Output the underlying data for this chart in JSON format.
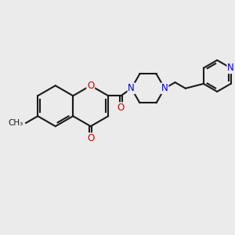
{
  "bg": "#ebebeb",
  "bond_color": "#1a1a1a",
  "lw": 1.5,
  "dbo": 0.055,
  "fs": 8.5,
  "dpi": 100,
  "figw": 3.0,
  "figh": 3.0,
  "colors": {
    "O": "#cc0000",
    "N": "#0000cc",
    "C": "#1a1a1a"
  }
}
